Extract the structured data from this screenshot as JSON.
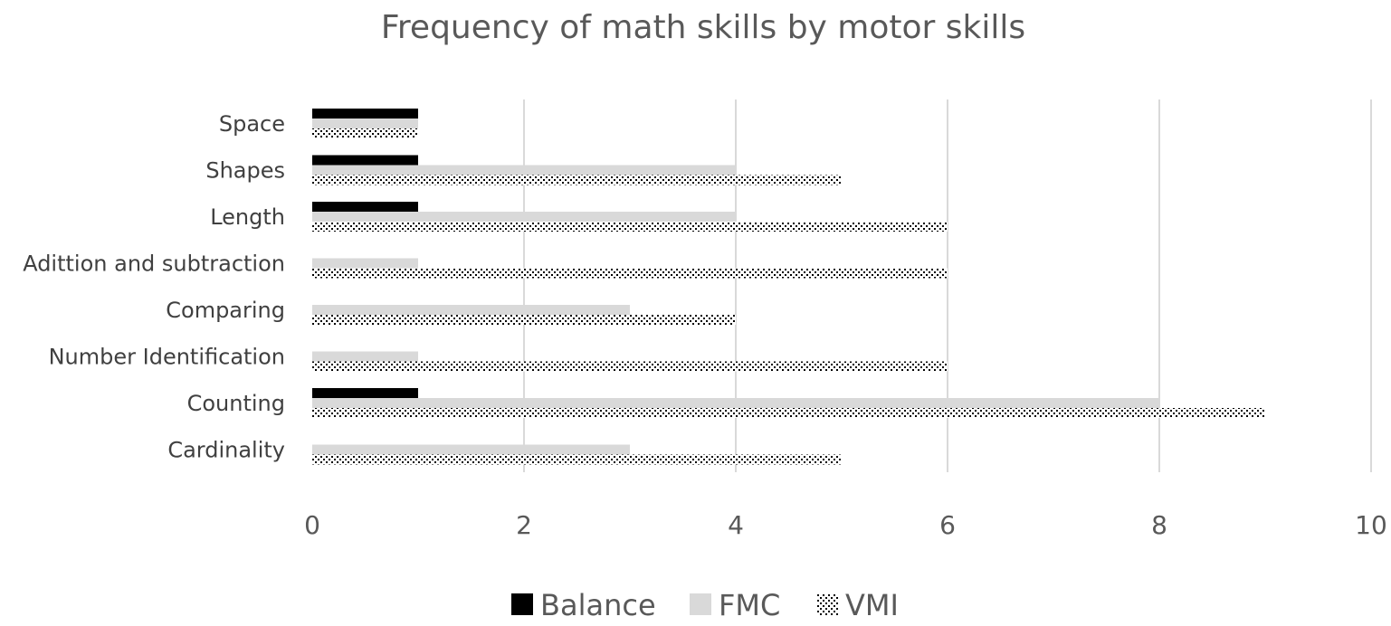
{
  "chart_data": {
    "type": "bar",
    "orientation": "horizontal",
    "title": "Frequency of math skills by motor skills",
    "categories": [
      "Space",
      "Shapes",
      "Length",
      "Adittion and subtraction",
      "Comparing",
      "Number Identification",
      "Counting",
      "Cardinality"
    ],
    "series": [
      {
        "name": "Balance",
        "values": [
          1,
          1,
          1,
          0,
          0,
          0,
          1,
          0
        ],
        "color": "#000000",
        "pattern": "solid"
      },
      {
        "name": "FMC",
        "values": [
          1,
          4,
          4,
          1,
          3,
          1,
          8,
          3
        ],
        "color": "#d9d9d9",
        "pattern": "solid"
      },
      {
        "name": "VMI",
        "values": [
          1,
          5,
          6,
          6,
          4,
          6,
          9,
          5
        ],
        "color": "#000000",
        "pattern": "dotted"
      }
    ],
    "xlim": [
      0,
      10
    ],
    "xticks": [
      "0",
      "2",
      "4",
      "6",
      "8",
      "10"
    ],
    "grid": "vertical",
    "legend_position": "bottom"
  }
}
